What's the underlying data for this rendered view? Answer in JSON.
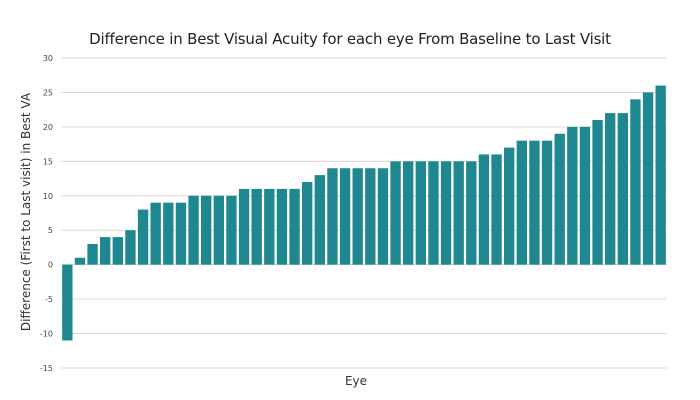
{
  "chart_data": {
    "type": "bar",
    "title": "Difference in Best Visual Acuity for each eye From Baseline to Last Visit",
    "xlabel": "Eye",
    "ylabel": "Difference (First to Last visit) in Best VA",
    "ylim": [
      -15,
      30
    ],
    "yticks": [
      -15,
      -10,
      -5,
      0,
      5,
      10,
      15,
      20,
      25,
      30
    ],
    "grid": true,
    "legend": "none",
    "bar_color": "#1f878f",
    "values": [
      -11,
      1,
      3,
      4,
      4,
      5,
      8,
      9,
      9,
      9,
      10,
      10,
      10,
      10,
      11,
      11,
      11,
      11,
      11,
      12,
      13,
      14,
      14,
      14,
      14,
      14,
      15,
      15,
      15,
      15,
      15,
      15,
      15,
      16,
      16,
      17,
      18,
      18,
      18,
      19,
      20,
      20,
      21,
      22,
      22,
      24,
      25,
      26
    ]
  }
}
